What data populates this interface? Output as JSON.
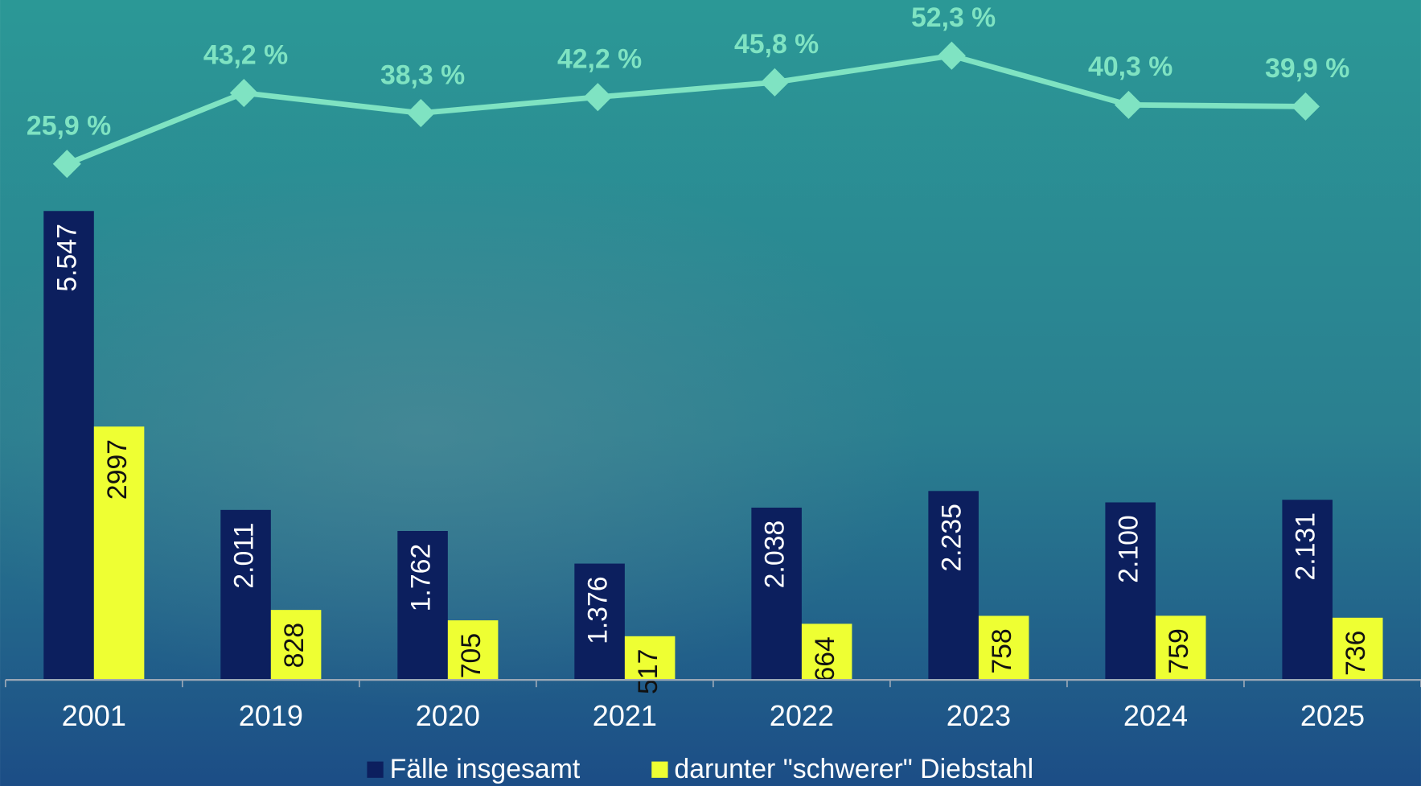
{
  "chart_data": {
    "type": "bar",
    "categories": [
      "2001",
      "2019",
      "2020",
      "2021",
      "2022",
      "2023",
      "2024",
      "2025"
    ],
    "series": [
      {
        "name": "Fälle insgesamt",
        "color": "#0c1f5e",
        "values": [
          5547,
          2011,
          1762,
          1376,
          2038,
          2235,
          2100,
          2131
        ],
        "value_labels": [
          "5.547",
          "2.011",
          "1.762",
          "1.376",
          "2.038",
          "2.235",
          "2.100",
          "2.131"
        ]
      },
      {
        "name": "darunter \"schwerer\" Diebstahl",
        "color": "#eeff33",
        "values": [
          2997,
          828,
          705,
          517,
          664,
          758,
          759,
          736
        ]
      }
    ],
    "line": {
      "color": "#7fe3c2",
      "axis": "y2",
      "values": [
        25.9,
        43.2,
        38.3,
        42.2,
        45.8,
        52.3,
        40.3,
        39.9
      ],
      "value_labels": [
        "25,9 %",
        "43,2 %",
        "38,3 %",
        "42,2 %",
        "45,8 %",
        "52,3 %",
        "40,3 %",
        "39,9 %"
      ]
    },
    "ylim": [
      0,
      8000
    ],
    "y2lim": [
      -100,
      65
    ],
    "legend": "bottom"
  }
}
